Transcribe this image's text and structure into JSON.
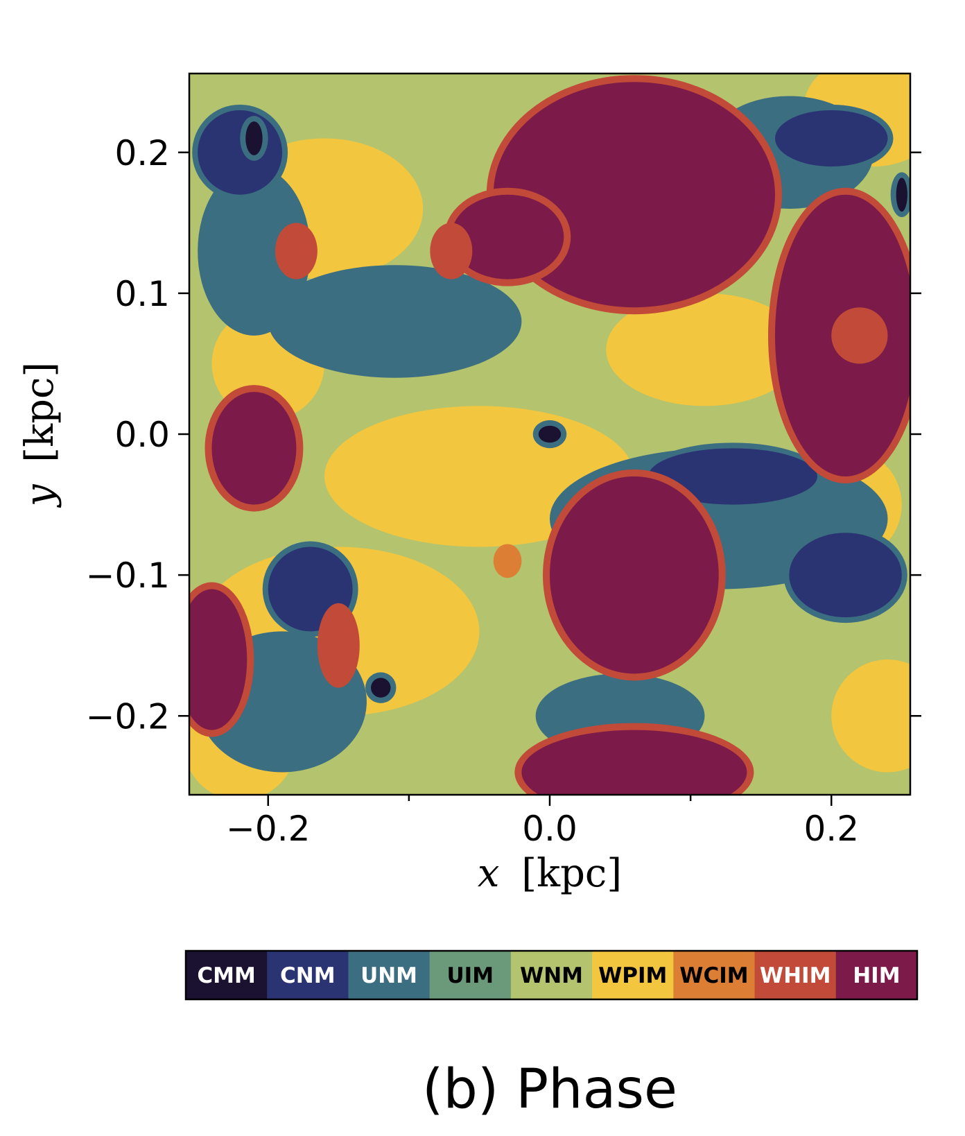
{
  "chart_data": {
    "type": "heatmap",
    "title": "",
    "caption": "(b) Phase",
    "xlabel": {
      "var": "x",
      "unit": "[kpc]"
    },
    "ylabel": {
      "var": "y",
      "unit": "[kpc]"
    },
    "xlim": [
      -0.256,
      0.256
    ],
    "ylim": [
      -0.256,
      0.256
    ],
    "x_ticks": [
      {
        "value": -0.2,
        "label": "−0.2"
      },
      {
        "value": 0.0,
        "label": "0.0"
      },
      {
        "value": 0.2,
        "label": "0.2"
      }
    ],
    "y_ticks": [
      {
        "value": 0.2,
        "label": "0.2"
      },
      {
        "value": 0.1,
        "label": "0.1"
      },
      {
        "value": 0.0,
        "label": "0.0"
      },
      {
        "value": -0.1,
        "label": "−0.1"
      },
      {
        "value": -0.2,
        "label": "−0.2"
      }
    ],
    "colorbar": {
      "orientation": "horizontal",
      "placement": "bottom",
      "categories": [
        {
          "label": "CMM",
          "color": "#1b1130",
          "text_color": "#ffffff"
        },
        {
          "label": "CNM",
          "color": "#2b3472",
          "text_color": "#ffffff"
        },
        {
          "label": "UNM",
          "color": "#3c6e82",
          "text_color": "#ffffff"
        },
        {
          "label": "UIM",
          "color": "#6b9a7b",
          "text_color": "#000000"
        },
        {
          "label": "WNM",
          "color": "#b4c36d",
          "text_color": "#000000"
        },
        {
          "label": "WPIM",
          "color": "#f3c63f",
          "text_color": "#000000"
        },
        {
          "label": "WCIM",
          "color": "#dd7e35",
          "text_color": "#000000"
        },
        {
          "label": "WHIM",
          "color": "#c24a38",
          "text_color": "#ffffff"
        },
        {
          "label": "HIM",
          "color": "#7c1a4a",
          "text_color": "#ffffff"
        }
      ]
    },
    "field_description": "2D slice map of ISM phase classification; regions shown as blobs of each phase category",
    "regions": [
      {
        "phase": "WPIM",
        "cx": -0.05,
        "cy": -0.03,
        "rx": 0.11,
        "ry": 0.05
      },
      {
        "phase": "WPIM",
        "cx": -0.16,
        "cy": 0.16,
        "rx": 0.07,
        "ry": 0.05
      },
      {
        "phase": "WPIM",
        "cx": -0.15,
        "cy": -0.14,
        "rx": 0.1,
        "ry": 0.06
      },
      {
        "phase": "WPIM",
        "cx": 0.11,
        "cy": 0.06,
        "rx": 0.07,
        "ry": 0.04
      },
      {
        "phase": "WPIM",
        "cx": 0.23,
        "cy": 0.23,
        "rx": 0.05,
        "ry": 0.04
      },
      {
        "phase": "WPIM",
        "cx": 0.21,
        "cy": -0.05,
        "rx": 0.04,
        "ry": 0.04
      },
      {
        "phase": "WPIM",
        "cx": -0.2,
        "cy": 0.05,
        "rx": 0.04,
        "ry": 0.04
      },
      {
        "phase": "WPIM",
        "cx": -0.22,
        "cy": -0.22,
        "rx": 0.04,
        "ry": 0.04
      },
      {
        "phase": "WPIM",
        "cx": 0.24,
        "cy": -0.2,
        "rx": 0.04,
        "ry": 0.04
      },
      {
        "phase": "UNM",
        "cx": -0.11,
        "cy": 0.08,
        "rx": 0.09,
        "ry": 0.04
      },
      {
        "phase": "UNM",
        "cx": 0.12,
        "cy": -0.06,
        "rx": 0.12,
        "ry": 0.05
      },
      {
        "phase": "UNM",
        "cx": -0.19,
        "cy": -0.19,
        "rx": 0.06,
        "ry": 0.05
      },
      {
        "phase": "UNM",
        "cx": -0.21,
        "cy": 0.13,
        "rx": 0.04,
        "ry": 0.06
      },
      {
        "phase": "UNM",
        "cx": 0.17,
        "cy": 0.2,
        "rx": 0.06,
        "ry": 0.04
      },
      {
        "phase": "UNM",
        "cx": 0.05,
        "cy": -0.2,
        "rx": 0.06,
        "ry": 0.03
      },
      {
        "phase": "CNM",
        "cx": -0.22,
        "cy": 0.2,
        "rx": 0.03,
        "ry": 0.03
      },
      {
        "phase": "CNM",
        "cx": 0.13,
        "cy": -0.03,
        "rx": 0.06,
        "ry": 0.02
      },
      {
        "phase": "CNM",
        "cx": -0.17,
        "cy": -0.11,
        "rx": 0.03,
        "ry": 0.03
      },
      {
        "phase": "CNM",
        "cx": 0.21,
        "cy": -0.1,
        "rx": 0.04,
        "ry": 0.03
      },
      {
        "phase": "CNM",
        "cx": 0.2,
        "cy": 0.21,
        "rx": 0.04,
        "ry": 0.02
      },
      {
        "phase": "CMM",
        "cx": 0.0,
        "cy": 0.0,
        "rx": 0.008,
        "ry": 0.006
      },
      {
        "phase": "CMM",
        "cx": -0.21,
        "cy": 0.21,
        "rx": 0.006,
        "ry": 0.012
      },
      {
        "phase": "CMM",
        "cx": -0.12,
        "cy": -0.18,
        "rx": 0.007,
        "ry": 0.007
      },
      {
        "phase": "CMM",
        "cx": 0.25,
        "cy": 0.17,
        "rx": 0.004,
        "ry": 0.012
      },
      {
        "phase": "HIM",
        "cx": 0.06,
        "cy": 0.17,
        "rx": 0.1,
        "ry": 0.08
      },
      {
        "phase": "HIM",
        "cx": 0.06,
        "cy": -0.1,
        "rx": 0.06,
        "ry": 0.07
      },
      {
        "phase": "HIM",
        "cx": 0.21,
        "cy": 0.07,
        "rx": 0.05,
        "ry": 0.1
      },
      {
        "phase": "HIM",
        "cx": -0.21,
        "cy": -0.01,
        "rx": 0.03,
        "ry": 0.04
      },
      {
        "phase": "HIM",
        "cx": 0.06,
        "cy": -0.24,
        "rx": 0.08,
        "ry": 0.03
      },
      {
        "phase": "HIM",
        "cx": -0.24,
        "cy": -0.16,
        "rx": 0.025,
        "ry": 0.05
      },
      {
        "phase": "HIM",
        "cx": -0.03,
        "cy": 0.14,
        "rx": 0.04,
        "ry": 0.03
      },
      {
        "phase": "WHIM",
        "cx": -0.18,
        "cy": 0.13,
        "rx": 0.015,
        "ry": 0.02
      },
      {
        "phase": "WHIM",
        "cx": -0.15,
        "cy": -0.15,
        "rx": 0.015,
        "ry": 0.03
      },
      {
        "phase": "WHIM",
        "cx": 0.22,
        "cy": 0.07,
        "rx": 0.02,
        "ry": 0.02
      },
      {
        "phase": "WHIM",
        "cx": -0.07,
        "cy": 0.13,
        "rx": 0.015,
        "ry": 0.02
      },
      {
        "phase": "WCIM",
        "cx": -0.03,
        "cy": -0.09,
        "rx": 0.01,
        "ry": 0.012
      }
    ]
  }
}
